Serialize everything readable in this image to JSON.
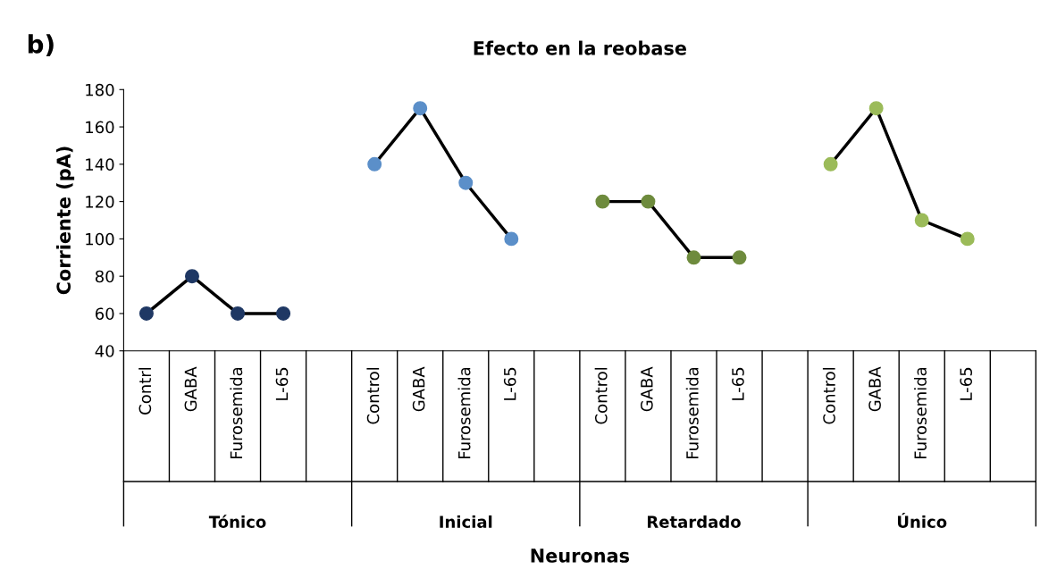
{
  "chart_data": {
    "type": "line",
    "title": "Efecto en la reobase",
    "xlabel": "Neuronas",
    "ylabel": "Corriente (pA)",
    "categories": [
      "Contrl",
      "GABA",
      "Furosemida",
      "L-65",
      null,
      "Control",
      "GABA",
      "Furosemida",
      "L-65",
      null,
      "Control",
      "GABA",
      "Furosemida",
      "L-65",
      null,
      "Control",
      "GABA",
      "Furosemida",
      "L-65",
      null
    ],
    "values": [
      60,
      80,
      60,
      60,
      null,
      140,
      170,
      130,
      100,
      null,
      120,
      120,
      90,
      90,
      null,
      140,
      170,
      110,
      100,
      null
    ],
    "color": "#000000",
    "colors": [
      "#1f3864",
      "#1f3864",
      "#1f3864",
      "#1f3864",
      null,
      "#5b8fc9",
      "#5b8fc9",
      "#5b8fc9",
      "#5b8fc9",
      null,
      "#6e8b3d",
      "#6e8b3d",
      "#6e8b3d",
      "#6e8b3d",
      null,
      "#9bbb59",
      "#9bbb59",
      "#9bbb59",
      "#9bbb59",
      null
    ],
    "annotations": [
      "b)",
      "Tónico",
      "Inicial",
      "Retardado",
      "Único"
    ],
    "ylim": [
      40,
      180
    ],
    "yticks": [
      40,
      60,
      80,
      100,
      120,
      140,
      160,
      180
    ],
    "marker": "circle",
    "line_style": "solid",
    "grid": false
  }
}
